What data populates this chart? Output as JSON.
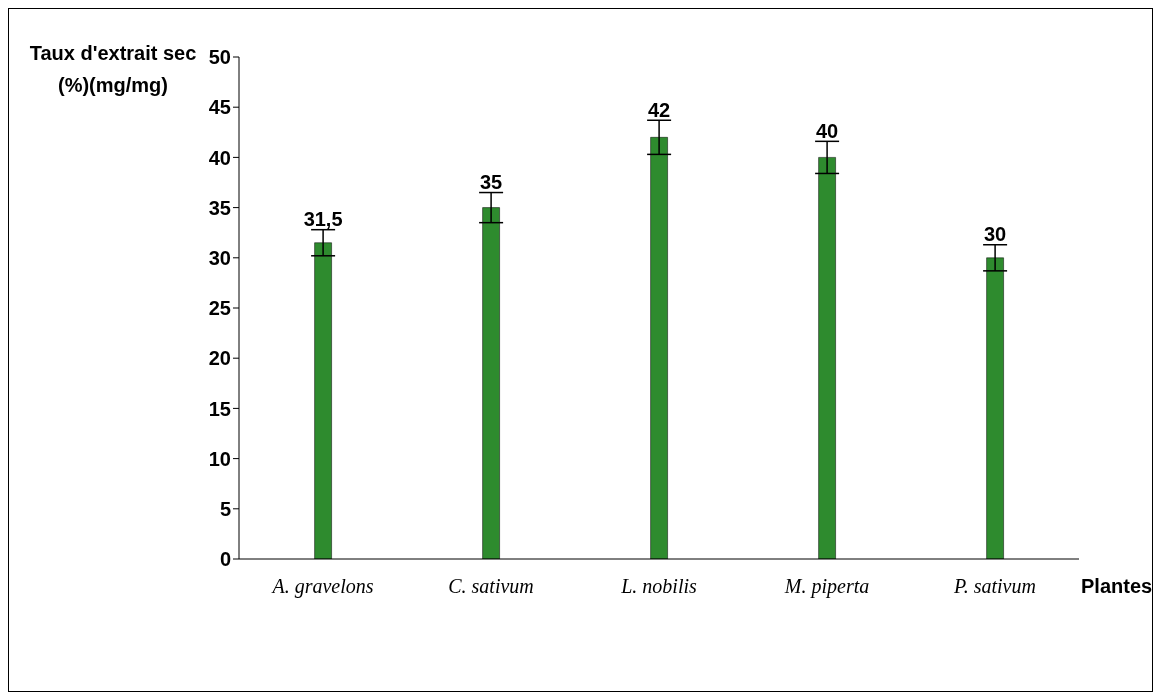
{
  "chart_data": {
    "type": "bar",
    "xlabel": "Plantes",
    "ylabel": "Taux d'extrait sec (%)(mg/mg)",
    "categories": [
      "A. gravelons",
      "C. sativum",
      "L. nobilis",
      "M. piperta",
      "P. sativum"
    ],
    "values": [
      31.5,
      35,
      42,
      40,
      30
    ],
    "errors": [
      1.3,
      1.5,
      1.7,
      1.6,
      1.3
    ],
    "value_labels": [
      "31,5",
      "35",
      "42",
      "40",
      "30"
    ],
    "color": "#2e8b2e",
    "ylim": [
      0,
      50
    ],
    "yticks": [
      0,
      5,
      10,
      15,
      20,
      25,
      30,
      35,
      40,
      45,
      50
    ],
    "grid": false,
    "legend": false
  }
}
